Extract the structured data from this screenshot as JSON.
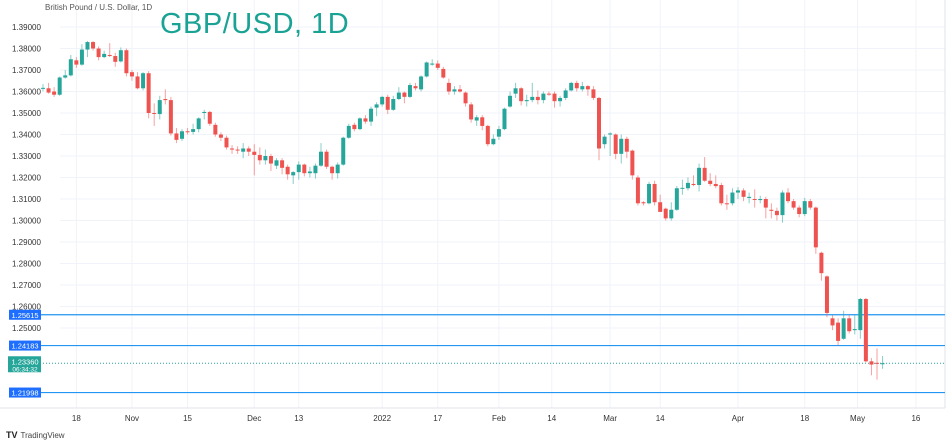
{
  "header": {
    "symbol_description": "British Pound / U.S. Dollar, 1D",
    "title": "GBP/USD, 1D"
  },
  "footer": {
    "brand": "TradingView",
    "brand_icon": "tradingview-logo-icon"
  },
  "colors": {
    "up": "#26a69a",
    "down": "#ef5350",
    "level_line": "#2196f3",
    "title": "#1aa394",
    "grid": "#f0f3fa"
  },
  "chart_data": {
    "type": "candlestick",
    "title": "GBP/USD, 1D",
    "ylim": [
      1.2165,
      1.3925
    ],
    "grid": true,
    "y_ticks": [
      "1.39000",
      "1.38000",
      "1.37000",
      "1.36000",
      "1.35000",
      "1.34000",
      "1.33000",
      "1.32000",
      "1.31000",
      "1.30000",
      "1.29000",
      "1.28000",
      "1.27000",
      "1.26000",
      "1.25000"
    ],
    "x_ticks": [
      {
        "label": "18",
        "bar": 6
      },
      {
        "label": "Nov",
        "bar": 16
      },
      {
        "label": "15",
        "bar": 26
      },
      {
        "label": "Dec",
        "bar": 38
      },
      {
        "label": "13",
        "bar": 46
      },
      {
        "label": "2022",
        "bar": 61
      },
      {
        "label": "17",
        "bar": 71
      },
      {
        "label": "Feb",
        "bar": 82
      },
      {
        "label": "14",
        "bar": 91.5
      },
      {
        "label": "Mar",
        "bar": 102
      },
      {
        "label": "14",
        "bar": 111
      },
      {
        "label": "Apr",
        "bar": 125
      },
      {
        "label": "18",
        "bar": 137
      },
      {
        "label": "May",
        "bar": 146.5
      },
      {
        "label": "16",
        "bar": 157
      }
    ],
    "levels": [
      {
        "value": 1.25615,
        "label": "1.25615"
      },
      {
        "value": 1.24183,
        "label": "1.24183"
      },
      {
        "value": 1.21998,
        "label": "1.21998"
      }
    ],
    "last_price": {
      "value": 1.2336,
      "label": "1.23360",
      "countdown": "06:34:32"
    },
    "candles": [
      [
        1.3615,
        1.3635,
        1.36,
        1.3617
      ],
      [
        1.3615,
        1.364,
        1.359,
        1.3595
      ],
      [
        1.36,
        1.362,
        1.3575,
        1.3585
      ],
      [
        1.3585,
        1.367,
        1.358,
        1.3665
      ],
      [
        1.3665,
        1.37,
        1.366,
        1.3675
      ],
      [
        1.3675,
        1.377,
        1.367,
        1.375
      ],
      [
        1.3745,
        1.376,
        1.371,
        1.3725
      ],
      [
        1.3725,
        1.382,
        1.372,
        1.3795
      ],
      [
        1.3795,
        1.3835,
        1.376,
        1.383
      ],
      [
        1.383,
        1.3835,
        1.379,
        1.38
      ],
      [
        1.38,
        1.381,
        1.3745,
        1.376
      ],
      [
        1.376,
        1.379,
        1.3755,
        1.3775
      ],
      [
        1.377,
        1.3825,
        1.376,
        1.3765
      ],
      [
        1.3765,
        1.378,
        1.3715,
        1.3738
      ],
      [
        1.374,
        1.3805,
        1.3735,
        1.3792
      ],
      [
        1.3792,
        1.38,
        1.367,
        1.3685
      ],
      [
        1.369,
        1.37,
        1.365,
        1.367
      ],
      [
        1.367,
        1.369,
        1.361,
        1.3615
      ],
      [
        1.3615,
        1.369,
        1.3605,
        1.3685
      ],
      [
        1.3685,
        1.3695,
        1.3475,
        1.35
      ],
      [
        1.35,
        1.3545,
        1.344,
        1.3497
      ],
      [
        1.3495,
        1.358,
        1.347,
        1.356
      ],
      [
        1.3565,
        1.361,
        1.354,
        1.356
      ],
      [
        1.356,
        1.3575,
        1.3395,
        1.3405
      ],
      [
        1.3405,
        1.343,
        1.336,
        1.3375
      ],
      [
        1.338,
        1.3425,
        1.337,
        1.3415
      ],
      [
        1.3415,
        1.343,
        1.34,
        1.3412
      ],
      [
        1.3412,
        1.345,
        1.34,
        1.3425
      ],
      [
        1.3425,
        1.348,
        1.341,
        1.3475
      ],
      [
        1.35,
        1.3515,
        1.347,
        1.3505
      ],
      [
        1.3505,
        1.351,
        1.344,
        1.345
      ],
      [
        1.3445,
        1.3455,
        1.339,
        1.34
      ],
      [
        1.34,
        1.341,
        1.337,
        1.3385
      ],
      [
        1.3385,
        1.3395,
        1.333,
        1.334
      ],
      [
        1.3335,
        1.335,
        1.331,
        1.333
      ],
      [
        1.333,
        1.3345,
        1.331,
        1.3328
      ],
      [
        1.332,
        1.336,
        1.329,
        1.3335
      ],
      [
        1.3335,
        1.3345,
        1.33,
        1.332
      ],
      [
        1.332,
        1.3355,
        1.321,
        1.3305
      ],
      [
        1.3305,
        1.334,
        1.326,
        1.328
      ],
      [
        1.328,
        1.333,
        1.326,
        1.33
      ],
      [
        1.33,
        1.331,
        1.323,
        1.3265
      ],
      [
        1.3255,
        1.329,
        1.324,
        1.328
      ],
      [
        1.328,
        1.329,
        1.3215,
        1.3245
      ],
      [
        1.325,
        1.326,
        1.319,
        1.3215
      ],
      [
        1.321,
        1.323,
        1.317,
        1.3225
      ],
      [
        1.3225,
        1.3275,
        1.319,
        1.326
      ],
      [
        1.326,
        1.3265,
        1.3205,
        1.322
      ],
      [
        1.322,
        1.325,
        1.32,
        1.3228
      ],
      [
        1.322,
        1.3265,
        1.3195,
        1.3255
      ],
      [
        1.3255,
        1.336,
        1.325,
        1.332
      ],
      [
        1.332,
        1.333,
        1.324,
        1.325
      ],
      [
        1.325,
        1.3255,
        1.319,
        1.322
      ],
      [
        1.322,
        1.327,
        1.3195,
        1.326
      ],
      [
        1.326,
        1.339,
        1.3255,
        1.3385
      ],
      [
        1.3385,
        1.345,
        1.338,
        1.344
      ],
      [
        1.3445,
        1.3455,
        1.3415,
        1.3425
      ],
      [
        1.3425,
        1.348,
        1.342,
        1.3475
      ],
      [
        1.3475,
        1.349,
        1.345,
        1.346
      ],
      [
        1.346,
        1.353,
        1.344,
        1.352
      ],
      [
        1.3525,
        1.355,
        1.3485,
        1.354
      ],
      [
        1.354,
        1.358,
        1.353,
        1.3575
      ],
      [
        1.3575,
        1.3585,
        1.3495,
        1.3515
      ],
      [
        1.3515,
        1.358,
        1.351,
        1.3565
      ],
      [
        1.3565,
        1.362,
        1.356,
        1.3595
      ],
      [
        1.3595,
        1.36,
        1.3545,
        1.3575
      ],
      [
        1.3575,
        1.364,
        1.357,
        1.363
      ],
      [
        1.3625,
        1.364,
        1.3605,
        1.3615
      ],
      [
        1.361,
        1.3675,
        1.36,
        1.367
      ],
      [
        1.367,
        1.374,
        1.3665,
        1.3735
      ],
      [
        1.3725,
        1.375,
        1.372,
        1.373
      ],
      [
        1.373,
        1.3745,
        1.37,
        1.371
      ],
      [
        1.3705,
        1.3715,
        1.366,
        1.3665
      ],
      [
        1.364,
        1.366,
        1.3585,
        1.36
      ],
      [
        1.36,
        1.3625,
        1.3585,
        1.361
      ],
      [
        1.361,
        1.363,
        1.3595,
        1.36
      ],
      [
        1.3595,
        1.36,
        1.353,
        1.3545
      ],
      [
        1.354,
        1.355,
        1.3455,
        1.347
      ],
      [
        1.3465,
        1.349,
        1.344,
        1.348
      ],
      [
        1.348,
        1.349,
        1.342,
        1.344
      ],
      [
        1.344,
        1.3445,
        1.3345,
        1.3355
      ],
      [
        1.3355,
        1.34,
        1.335,
        1.338
      ],
      [
        1.339,
        1.344,
        1.3375,
        1.3425
      ],
      [
        1.3425,
        1.3525,
        1.342,
        1.352
      ],
      [
        1.353,
        1.36,
        1.3525,
        1.358
      ],
      [
        1.359,
        1.364,
        1.357,
        1.3615
      ],
      [
        1.3615,
        1.362,
        1.3535,
        1.3555
      ],
      [
        1.3555,
        1.3585,
        1.353,
        1.356
      ],
      [
        1.356,
        1.364,
        1.355,
        1.3575
      ],
      [
        1.3575,
        1.3605,
        1.354,
        1.356
      ],
      [
        1.356,
        1.36,
        1.3545,
        1.359
      ],
      [
        1.359,
        1.36,
        1.358,
        1.3588
      ],
      [
        1.359,
        1.36,
        1.3525,
        1.3555
      ],
      [
        1.3555,
        1.358,
        1.353,
        1.357
      ],
      [
        1.357,
        1.3615,
        1.356,
        1.3605
      ],
      [
        1.3605,
        1.3645,
        1.36,
        1.364
      ],
      [
        1.364,
        1.365,
        1.36,
        1.3615
      ],
      [
        1.361,
        1.3645,
        1.36,
        1.3625
      ],
      [
        1.3625,
        1.363,
        1.358,
        1.361
      ],
      [
        1.361,
        1.3625,
        1.356,
        1.357
      ],
      [
        1.357,
        1.3575,
        1.328,
        1.3335
      ],
      [
        1.3355,
        1.34,
        1.3335,
        1.339
      ],
      [
        1.34,
        1.341,
        1.33,
        1.3405
      ],
      [
        1.34,
        1.3405,
        1.3285,
        1.331
      ],
      [
        1.331,
        1.34,
        1.3265,
        1.338
      ],
      [
        1.338,
        1.339,
        1.329,
        1.332
      ],
      [
        1.3325,
        1.333,
        1.319,
        1.321
      ],
      [
        1.32,
        1.321,
        1.307,
        1.308
      ],
      [
        1.3085,
        1.309,
        1.307,
        1.308
      ],
      [
        1.308,
        1.318,
        1.3075,
        1.317
      ],
      [
        1.317,
        1.3185,
        1.307,
        1.3085
      ],
      [
        1.3085,
        1.312,
        1.304,
        1.304
      ],
      [
        1.3055,
        1.306,
        1.3,
        1.301
      ],
      [
        1.301,
        1.3085,
        1.3,
        1.305
      ],
      [
        1.305,
        1.316,
        1.3045,
        1.315
      ],
      [
        1.315,
        1.319,
        1.312,
        1.3152
      ],
      [
        1.315,
        1.32,
        1.314,
        1.3175
      ],
      [
        1.317,
        1.321,
        1.316,
        1.3165
      ],
      [
        1.3165,
        1.3265,
        1.3135,
        1.3245
      ],
      [
        1.3245,
        1.3295,
        1.318,
        1.3185
      ],
      [
        1.3185,
        1.322,
        1.316,
        1.317
      ],
      [
        1.317,
        1.321,
        1.315,
        1.316
      ],
      [
        1.3165,
        1.3175,
        1.307,
        1.308
      ],
      [
        1.308,
        1.312,
        1.305,
        1.3078
      ],
      [
        1.308,
        1.315,
        1.307,
        1.313
      ],
      [
        1.313,
        1.3155,
        1.31,
        1.314
      ],
      [
        1.314,
        1.315,
        1.309,
        1.311
      ],
      [
        1.3105,
        1.313,
        1.308,
        1.311
      ],
      [
        1.31,
        1.3145,
        1.306,
        1.3098
      ],
      [
        1.3095,
        1.3115,
        1.308,
        1.31
      ],
      [
        1.31,
        1.311,
        1.301,
        1.306
      ],
      [
        1.305,
        1.308,
        1.301,
        1.3045
      ],
      [
        1.3045,
        1.306,
        1.3,
        1.3025
      ],
      [
        1.3025,
        1.314,
        1.299,
        1.313
      ],
      [
        1.313,
        1.315,
        1.308,
        1.309
      ],
      [
        1.309,
        1.31,
        1.305,
        1.306
      ],
      [
        1.306,
        1.307,
        1.3015,
        1.303
      ],
      [
        1.303,
        1.3105,
        1.302,
        1.309
      ],
      [
        1.309,
        1.31,
        1.305,
        1.306
      ],
      [
        1.306,
        1.3065,
        1.2845,
        1.2875
      ],
      [
        1.285,
        1.2855,
        1.272,
        1.2755
      ],
      [
        1.274,
        1.2745,
        1.255,
        1.257
      ],
      [
        1.2545,
        1.256,
        1.249,
        1.2512
      ],
      [
        1.2525,
        1.2545,
        1.242,
        1.244
      ],
      [
        1.245,
        1.258,
        1.2445,
        1.2545
      ],
      [
        1.2545,
        1.256,
        1.2475,
        1.2485
      ],
      [
        1.249,
        1.256,
        1.247,
        1.2495
      ],
      [
        1.249,
        1.264,
        1.245,
        1.2635
      ],
      [
        1.2635,
        1.264,
        1.234,
        1.2345
      ],
      [
        1.2345,
        1.236,
        1.228,
        1.233
      ],
      [
        1.2338,
        1.2405,
        1.226,
        1.2335
      ],
      [
        1.2333,
        1.237,
        1.231,
        1.2336
      ]
    ]
  }
}
